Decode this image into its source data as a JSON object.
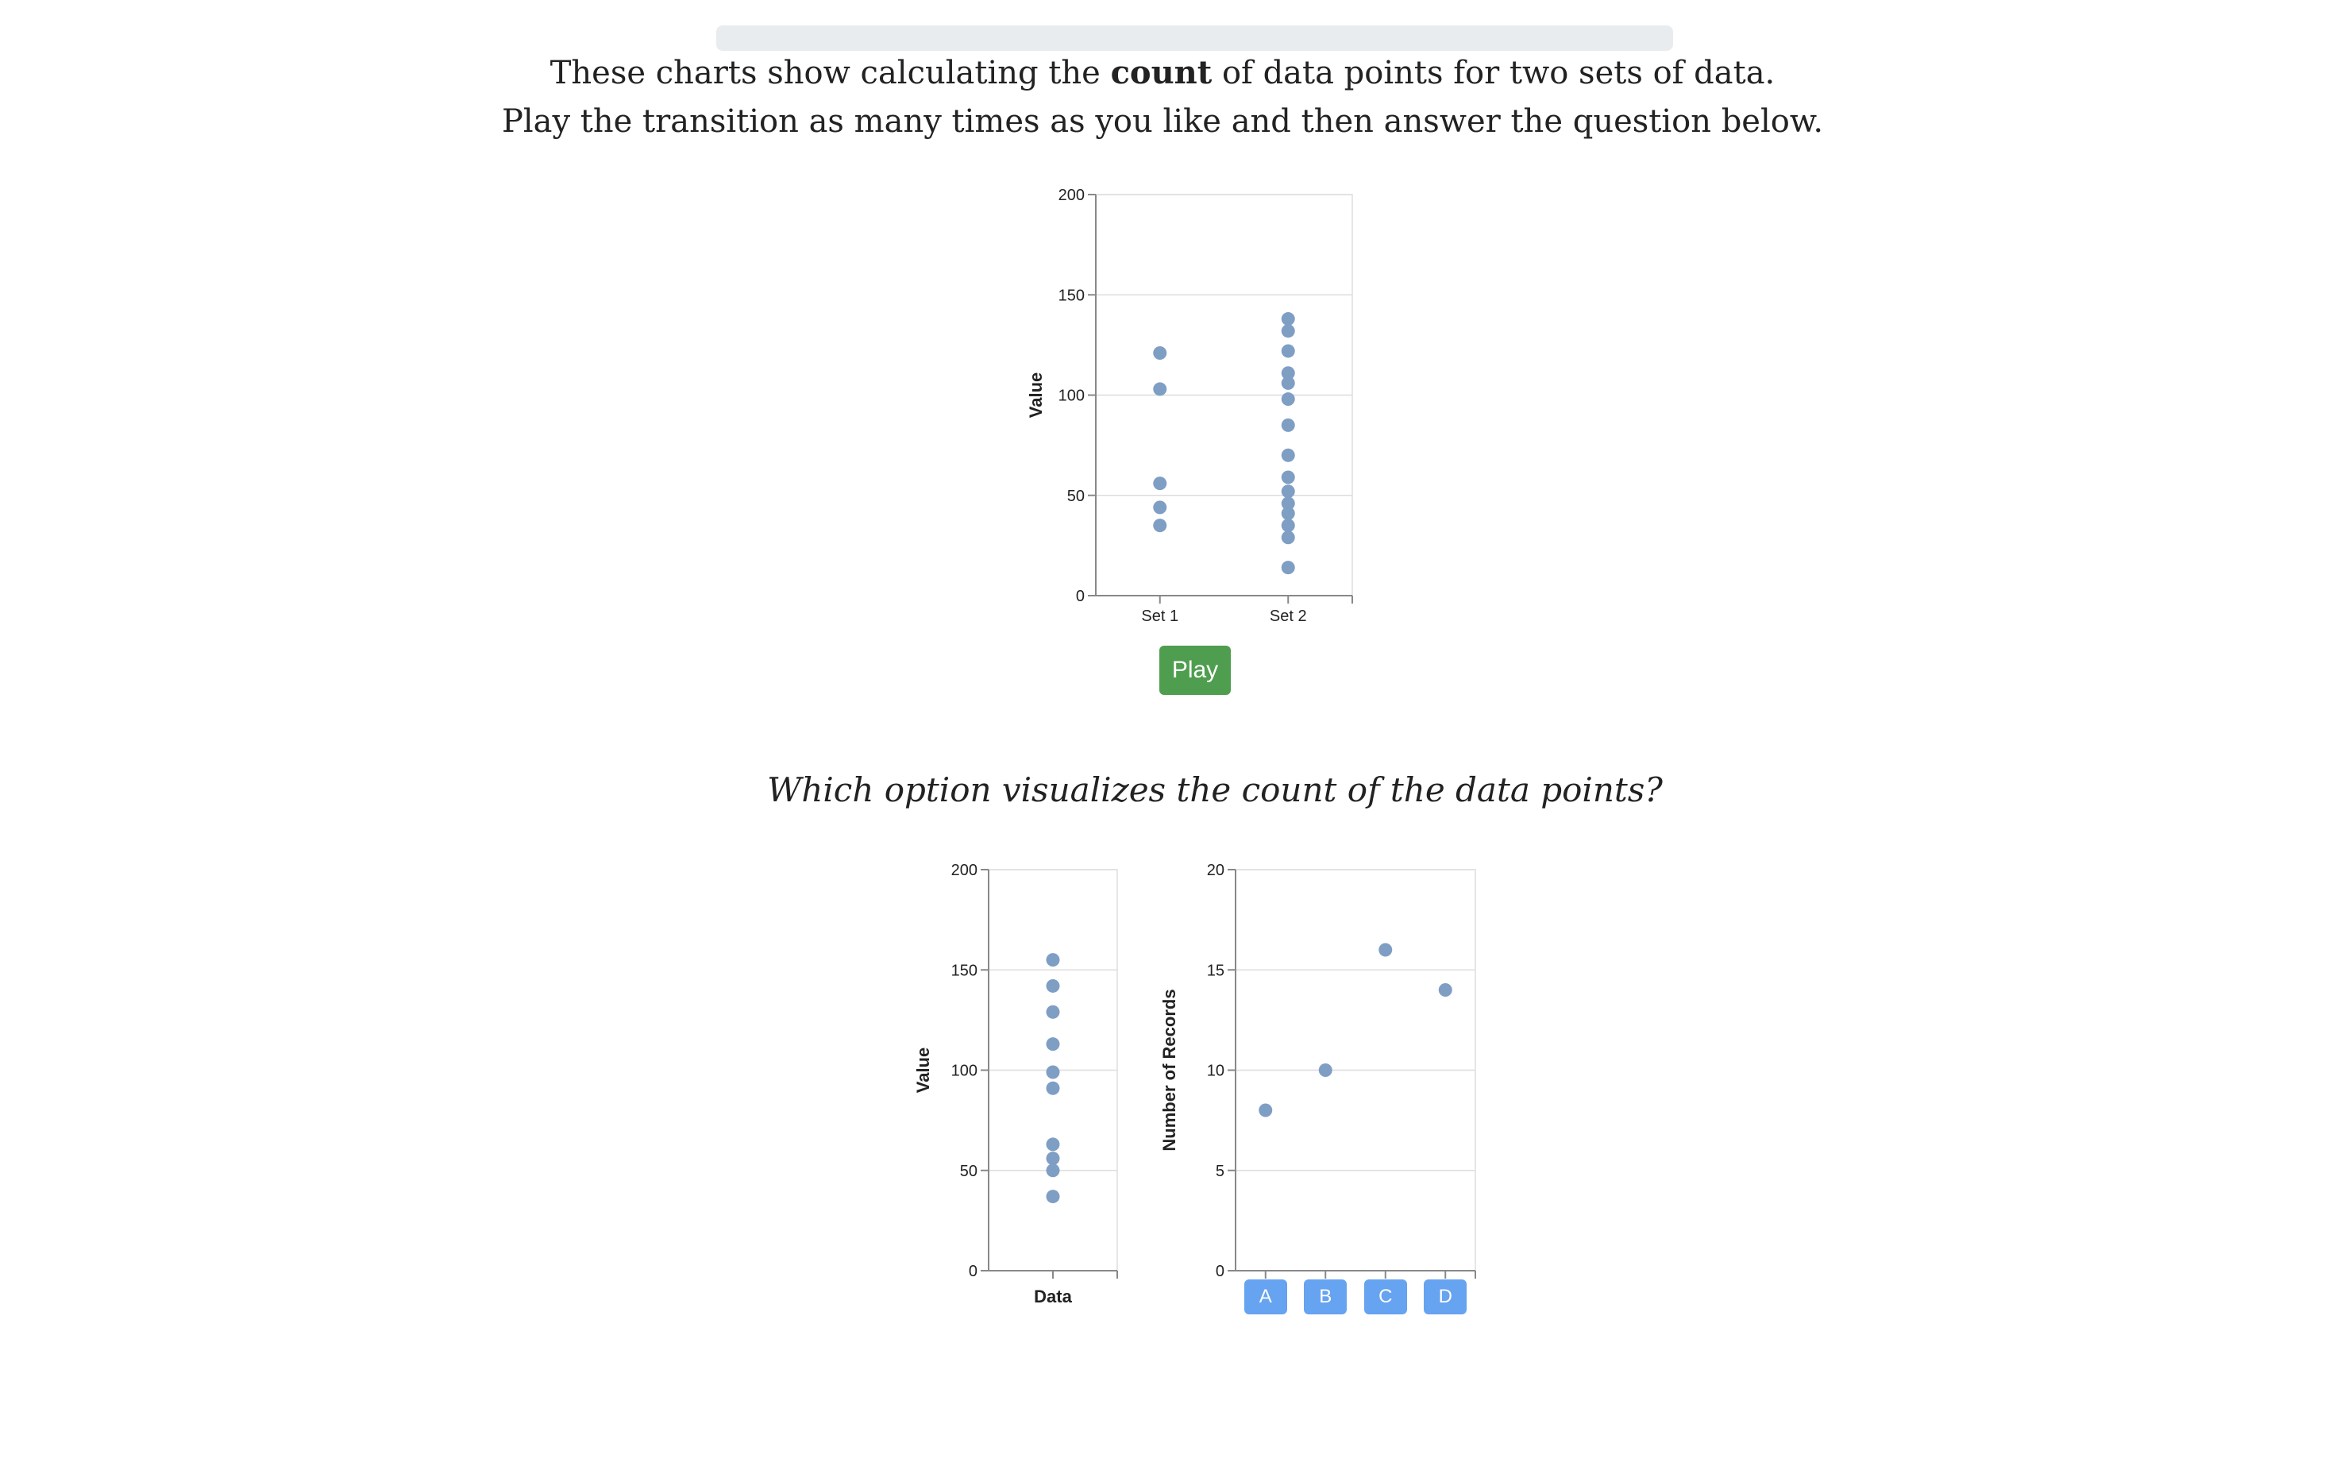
{
  "intro": {
    "line1_before": "These charts show calculating the ",
    "line1_bold": "count",
    "line1_after": " of data points for two sets of data.",
    "line2": "Play the transition as many times as you like and then answer the question below."
  },
  "play_label": "Play",
  "question": "Which option visualizes the count of the data points?",
  "options": [
    "A",
    "B",
    "C",
    "D"
  ],
  "colors": {
    "point": "#7f9ec4",
    "play": "#4f9d4f",
    "option": "#66a3f0",
    "grid": "#dddddd"
  },
  "chart_data": [
    {
      "type": "scatter",
      "xlabel": "",
      "ylabel": "Value",
      "categories": [
        "Set 1",
        "Set 2"
      ],
      "ylim": [
        0,
        200
      ],
      "yticks": [
        0,
        50,
        100,
        150,
        200
      ],
      "grid": true,
      "series": [
        {
          "category": "Set 1",
          "values": [
            121,
            103,
            56,
            44,
            35
          ]
        },
        {
          "category": "Set 2",
          "values": [
            138,
            132,
            122,
            111,
            106,
            98,
            85,
            70,
            59,
            52,
            46,
            41,
            35,
            29,
            14
          ]
        }
      ]
    },
    {
      "type": "scatter",
      "xlabel": "Data",
      "ylabel": "Value",
      "categories": [
        ""
      ],
      "ylim": [
        0,
        200
      ],
      "yticks": [
        0,
        50,
        100,
        150,
        200
      ],
      "grid": true,
      "series": [
        {
          "category": "",
          "values": [
            155,
            142,
            129,
            113,
            99,
            91,
            63,
            56,
            50,
            37
          ]
        }
      ]
    },
    {
      "type": "scatter",
      "xlabel": "",
      "ylabel": "Number of Records",
      "categories": [
        "A",
        "B",
        "C",
        "D"
      ],
      "ylim": [
        0,
        20
      ],
      "yticks": [
        0,
        5,
        10,
        15,
        20
      ],
      "grid": true,
      "series": [
        {
          "category": "A",
          "values": [
            8
          ]
        },
        {
          "category": "B",
          "values": [
            10
          ]
        },
        {
          "category": "C",
          "values": [
            16
          ]
        },
        {
          "category": "D",
          "values": [
            14
          ]
        }
      ]
    }
  ]
}
